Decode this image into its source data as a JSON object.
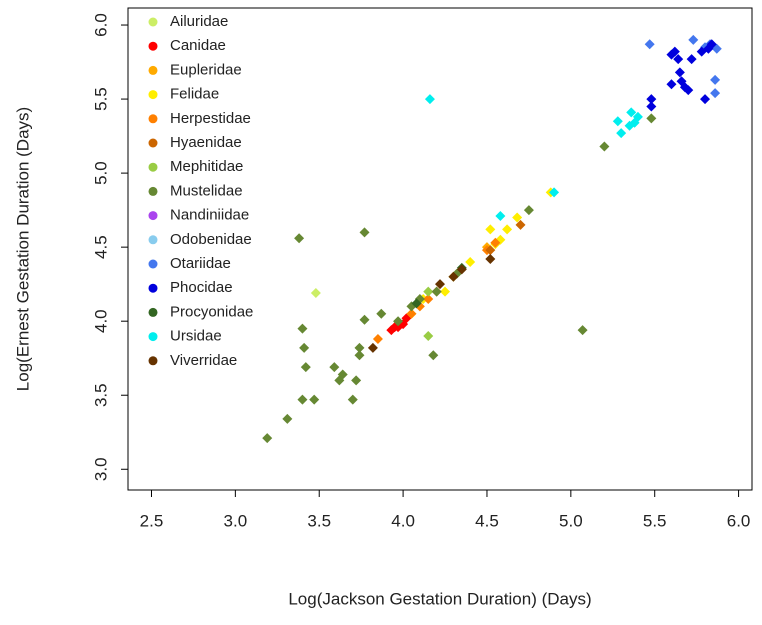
{
  "chart_data": {
    "type": "scatter",
    "x_label": "Log(Jackson Gestation Duration) (Days)",
    "y_label": "Log(Ernest Gestation Duration (Days)",
    "xlim": [
      2.36,
      6.08
    ],
    "ylim": [
      2.86,
      6.115
    ],
    "xticks": [
      2.5,
      {
        "value": 3,
        "label": "3.0"
      },
      3.5,
      {
        "value": 4,
        "label": "4.0"
      },
      4.5,
      {
        "value": 5,
        "label": "5.0"
      },
      5.5,
      {
        "value": 6,
        "label": "6.0"
      }
    ],
    "yticks": [
      {
        "value": 3,
        "label": "3.0"
      },
      3.5,
      {
        "value": 4,
        "label": "4.0"
      },
      4.5,
      {
        "value": 5,
        "label": "5.0"
      },
      5.5,
      {
        "value": 6,
        "label": "6.0"
      }
    ],
    "legend": "top-left",
    "series": [
      {
        "name": "Ailuridae",
        "color": "#ccee66",
        "x": [
          3.48
        ],
        "y": [
          4.19
        ]
      },
      {
        "name": "Canidae",
        "color": "#ff0000",
        "x": [
          3.93,
          3.95,
          3.97,
          4.0,
          4.02
        ],
        "y": [
          3.94,
          3.96,
          3.96,
          3.98,
          4.02
        ]
      },
      {
        "name": "Eupleridae",
        "color": "#ffaa00",
        "x": [
          4.5
        ],
        "y": [
          4.5
        ]
      },
      {
        "name": "Felidae",
        "color": "#ffee00",
        "x": [
          4.05,
          4.12,
          4.25,
          4.3,
          4.4,
          4.52,
          4.55,
          4.58,
          4.62,
          4.68,
          4.88
        ],
        "y": [
          4.05,
          4.15,
          4.2,
          4.3,
          4.4,
          4.62,
          4.52,
          4.55,
          4.62,
          4.7,
          4.87
        ]
      },
      {
        "name": "Herpestidae",
        "color": "#ff8000",
        "x": [
          3.85,
          4.05,
          4.1,
          4.15,
          4.2,
          4.5,
          4.55
        ],
        "y": [
          3.88,
          4.05,
          4.1,
          4.15,
          4.2,
          4.48,
          4.53
        ]
      },
      {
        "name": "Hyaenidae",
        "color": "#cc6600",
        "x": [
          4.52,
          4.7
        ],
        "y": [
          4.48,
          4.65
        ]
      },
      {
        "name": "Mephitidae",
        "color": "#99cc44",
        "x": [
          4.15,
          4.15
        ],
        "y": [
          3.9,
          4.2
        ]
      },
      {
        "name": "Mustelidae",
        "color": "#668833",
        "x": [
          3.19,
          3.31,
          3.4,
          3.47,
          3.42,
          3.41,
          3.4,
          3.38,
          3.59,
          3.62,
          3.64,
          3.7,
          3.72,
          3.74,
          3.74,
          3.77,
          3.77,
          3.87,
          3.97,
          4.05,
          4.1,
          4.18,
          4.2,
          4.32,
          4.75,
          5.07,
          5.2,
          5.48
        ],
        "y": [
          3.21,
          3.34,
          3.47,
          3.47,
          3.69,
          3.82,
          3.95,
          4.56,
          3.69,
          3.6,
          3.64,
          3.47,
          3.6,
          3.77,
          3.82,
          4.01,
          4.6,
          4.05,
          4.0,
          4.1,
          4.15,
          3.77,
          4.2,
          4.32,
          4.75,
          3.94,
          5.18,
          5.37
        ]
      },
      {
        "name": "Nandiniidae",
        "color": "#aa44ee",
        "x": [],
        "y": []
      },
      {
        "name": "Odobenidae",
        "color": "#88ccee",
        "x": [],
        "y": []
      },
      {
        "name": "Otariidae",
        "color": "#4477ee",
        "x": [
          5.47,
          5.73,
          5.8,
          5.83,
          5.86,
          5.86,
          5.87
        ],
        "y": [
          5.87,
          5.9,
          5.85,
          5.87,
          5.63,
          5.54,
          5.84
        ]
      },
      {
        "name": "Phocidae",
        "color": "#0000dd",
        "x": [
          5.48,
          5.48,
          5.6,
          5.6,
          5.62,
          5.64,
          5.65,
          5.66,
          5.68,
          5.7,
          5.72,
          5.78,
          5.8,
          5.82,
          5.84
        ],
        "y": [
          5.45,
          5.5,
          5.6,
          5.8,
          5.82,
          5.77,
          5.68,
          5.62,
          5.58,
          5.56,
          5.77,
          5.82,
          5.5,
          5.84,
          5.87
        ]
      },
      {
        "name": "Procyonidae",
        "color": "#336622",
        "x": [
          4.08,
          4.35
        ],
        "y": [
          4.12,
          4.36
        ]
      },
      {
        "name": "Ursidae",
        "color": "#00eeee",
        "x": [
          4.16,
          4.58,
          4.9,
          5.28,
          5.3,
          5.35,
          5.36,
          5.38,
          5.4
        ],
        "y": [
          5.5,
          4.71,
          4.87,
          5.35,
          5.27,
          5.32,
          5.41,
          5.34,
          5.38
        ]
      },
      {
        "name": "Viverridae",
        "color": "#663300",
        "x": [
          3.82,
          4.22,
          4.3,
          4.35,
          4.52
        ],
        "y": [
          3.82,
          4.25,
          4.3,
          4.35,
          4.42
        ]
      }
    ]
  }
}
